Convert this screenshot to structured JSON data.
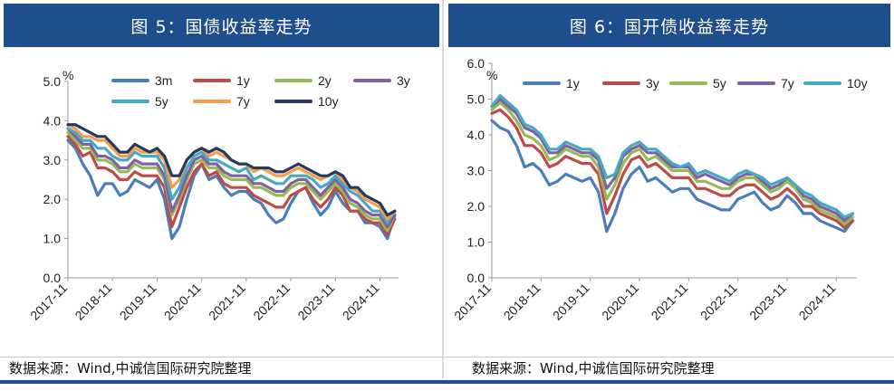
{
  "charts": [
    {
      "title": "图 5：国债收益率走势",
      "source": "数据来源：Wind,中诚信国际研究院整理",
      "unit": "%",
      "chart_data": {
        "type": "line",
        "xlabel": "",
        "ylabel": "%",
        "ylim": [
          0,
          5
        ],
        "yticks": [
          "0.0",
          "1.0",
          "2.0",
          "3.0",
          "4.0",
          "5.0"
        ],
        "x_ticks": [
          "2017-11",
          "2018-11",
          "2019-11",
          "2020-11",
          "2021-11",
          "2022-11",
          "2023-11",
          "2024-11"
        ],
        "x_range": [
          "2017-11",
          "2025-04"
        ],
        "legend": "top",
        "x": [
          "2017-11",
          "2018-01",
          "2018-03",
          "2018-05",
          "2018-07",
          "2018-09",
          "2018-11",
          "2019-01",
          "2019-03",
          "2019-05",
          "2019-07",
          "2019-09",
          "2019-11",
          "2020-01",
          "2020-03",
          "2020-05",
          "2020-07",
          "2020-09",
          "2020-11",
          "2021-01",
          "2021-03",
          "2021-05",
          "2021-07",
          "2021-09",
          "2021-11",
          "2022-01",
          "2022-03",
          "2022-05",
          "2022-07",
          "2022-09",
          "2022-11",
          "2023-01",
          "2023-03",
          "2023-05",
          "2023-07",
          "2023-09",
          "2023-11",
          "2024-01",
          "2024-03",
          "2024-05",
          "2024-07",
          "2024-09",
          "2024-11",
          "2025-01",
          "2025-03"
        ],
        "series": [
          {
            "name": "3m",
            "color": "#4a7ebb",
            "values": [
              3.5,
              3.3,
              2.9,
              2.6,
              2.1,
              2.4,
              2.4,
              2.1,
              2.2,
              2.5,
              2.4,
              2.3,
              2.5,
              2.0,
              1.0,
              1.3,
              2.0,
              2.6,
              2.9,
              2.5,
              2.6,
              2.3,
              2.1,
              2.2,
              2.2,
              2.0,
              1.9,
              1.6,
              1.4,
              1.5,
              1.9,
              2.2,
              2.3,
              1.9,
              1.6,
              1.8,
              2.2,
              1.9,
              1.7,
              1.7,
              1.4,
              1.4,
              1.3,
              1.0,
              1.6
            ]
          },
          {
            "name": "1y",
            "color": "#be4b48",
            "values": [
              3.6,
              3.4,
              3.1,
              3.2,
              2.8,
              2.8,
              2.7,
              2.5,
              2.5,
              2.7,
              2.6,
              2.6,
              2.6,
              2.3,
              1.3,
              1.8,
              2.3,
              2.7,
              2.9,
              2.6,
              2.7,
              2.4,
              2.3,
              2.3,
              2.3,
              2.1,
              2.0,
              1.9,
              1.8,
              1.8,
              2.1,
              2.2,
              2.3,
              2.0,
              1.8,
              2.0,
              2.3,
              2.1,
              1.7,
              1.7,
              1.5,
              1.4,
              1.4,
              1.1,
              1.5
            ]
          },
          {
            "name": "2y",
            "color": "#98b954",
            "values": [
              3.7,
              3.5,
              3.3,
              3.3,
              3.0,
              3.0,
              2.9,
              2.7,
              2.7,
              2.9,
              2.8,
              2.8,
              2.8,
              2.5,
              1.6,
              2.0,
              2.5,
              2.9,
              3.0,
              2.8,
              2.8,
              2.6,
              2.5,
              2.5,
              2.5,
              2.3,
              2.3,
              2.2,
              2.1,
              2.1,
              2.3,
              2.4,
              2.4,
              2.2,
              2.0,
              2.2,
              2.4,
              2.2,
              1.9,
              1.8,
              1.6,
              1.5,
              1.5,
              1.2,
              1.6
            ]
          },
          {
            "name": "3y",
            "color": "#7e62a1",
            "values": [
              3.8,
              3.6,
              3.4,
              3.4,
              3.1,
              3.1,
              3.0,
              2.8,
              2.8,
              3.0,
              2.9,
              2.9,
              2.9,
              2.6,
              1.7,
              2.1,
              2.6,
              3.0,
              3.1,
              2.9,
              2.9,
              2.7,
              2.6,
              2.6,
              2.6,
              2.4,
              2.4,
              2.3,
              2.2,
              2.2,
              2.4,
              2.5,
              2.5,
              2.3,
              2.1,
              2.3,
              2.5,
              2.3,
              2.0,
              1.9,
              1.7,
              1.6,
              1.6,
              1.3,
              1.6
            ]
          },
          {
            "name": "5y",
            "color": "#46aac5",
            "values": [
              3.8,
              3.7,
              3.5,
              3.5,
              3.3,
              3.3,
              3.1,
              3.0,
              3.0,
              3.2,
              3.1,
              3.1,
              3.1,
              2.8,
              2.0,
              2.3,
              2.8,
              3.1,
              3.2,
              3.0,
              3.0,
              2.9,
              2.8,
              2.7,
              2.8,
              2.5,
              2.6,
              2.5,
              2.4,
              2.4,
              2.6,
              2.6,
              2.6,
              2.5,
              2.3,
              2.4,
              2.6,
              2.4,
              2.2,
              2.1,
              1.9,
              1.7,
              1.7,
              1.4,
              1.7
            ]
          },
          {
            "name": "7y",
            "color": "#f59d4b",
            "values": [
              3.9,
              3.8,
              3.6,
              3.6,
              3.5,
              3.5,
              3.3,
              3.1,
              3.1,
              3.3,
              3.2,
              3.2,
              3.2,
              3.0,
              2.3,
              2.5,
              3.0,
              3.2,
              3.3,
              3.1,
              3.2,
              3.1,
              3.0,
              2.9,
              2.9,
              2.7,
              2.8,
              2.7,
              2.6,
              2.6,
              2.7,
              2.8,
              2.7,
              2.6,
              2.5,
              2.6,
              2.7,
              2.5,
              2.3,
              2.2,
              2.0,
              1.9,
              1.8,
              1.5,
              1.7
            ]
          },
          {
            "name": "10y",
            "color": "#253a5e",
            "values": [
              3.9,
              3.9,
              3.8,
              3.7,
              3.6,
              3.6,
              3.4,
              3.2,
              3.2,
              3.4,
              3.3,
              3.2,
              3.3,
              3.1,
              2.6,
              2.6,
              3.0,
              3.2,
              3.3,
              3.2,
              3.3,
              3.2,
              3.0,
              2.9,
              2.9,
              2.8,
              2.8,
              2.8,
              2.7,
              2.7,
              2.8,
              2.9,
              2.8,
              2.7,
              2.6,
              2.6,
              2.7,
              2.6,
              2.3,
              2.3,
              2.1,
              2.0,
              1.9,
              1.6,
              1.7
            ]
          }
        ]
      }
    },
    {
      "title": "图 6：国开债收益率走势",
      "source": "数据来源：Wind,中诚信国际研究院整理",
      "unit": "%",
      "chart_data": {
        "type": "line",
        "xlabel": "",
        "ylabel": "%",
        "ylim": [
          0,
          6
        ],
        "yticks": [
          "0.0",
          "1.0",
          "2.0",
          "3.0",
          "4.0",
          "5.0",
          "6.0"
        ],
        "x_ticks": [
          "2017-11",
          "2018-11",
          "2019-11",
          "2020-11",
          "2021-11",
          "2022-11",
          "2023-11",
          "2024-11"
        ],
        "x_range": [
          "2017-11",
          "2025-04"
        ],
        "legend": "top",
        "x": [
          "2017-11",
          "2018-01",
          "2018-03",
          "2018-05",
          "2018-07",
          "2018-09",
          "2018-11",
          "2019-01",
          "2019-03",
          "2019-05",
          "2019-07",
          "2019-09",
          "2019-11",
          "2020-01",
          "2020-03",
          "2020-05",
          "2020-07",
          "2020-09",
          "2020-11",
          "2021-01",
          "2021-03",
          "2021-05",
          "2021-07",
          "2021-09",
          "2021-11",
          "2022-01",
          "2022-03",
          "2022-05",
          "2022-07",
          "2022-09",
          "2022-11",
          "2023-01",
          "2023-03",
          "2023-05",
          "2023-07",
          "2023-09",
          "2023-11",
          "2024-01",
          "2024-03",
          "2024-05",
          "2024-07",
          "2024-09",
          "2024-11",
          "2025-01",
          "2025-03"
        ],
        "series": [
          {
            "name": "1y",
            "color": "#4a7ebb",
            "values": [
              4.4,
              4.2,
              4.1,
              3.7,
              3.1,
              3.2,
              3.0,
              2.6,
              2.7,
              2.9,
              2.8,
              2.7,
              2.8,
              2.4,
              1.3,
              1.8,
              2.5,
              2.9,
              3.1,
              2.7,
              2.8,
              2.6,
              2.4,
              2.5,
              2.5,
              2.2,
              2.1,
              2.0,
              1.9,
              1.9,
              2.2,
              2.3,
              2.4,
              2.1,
              1.9,
              2.0,
              2.3,
              2.1,
              1.8,
              1.8,
              1.6,
              1.5,
              1.4,
              1.3,
              1.6
            ]
          },
          {
            "name": "3y",
            "color": "#be4b48",
            "values": [
              4.6,
              4.7,
              4.5,
              4.2,
              3.7,
              3.7,
              3.5,
              3.1,
              3.2,
              3.4,
              3.3,
              3.2,
              3.2,
              2.9,
              1.8,
              2.3,
              2.9,
              3.3,
              3.4,
              3.1,
              3.2,
              3.0,
              2.8,
              2.8,
              2.8,
              2.5,
              2.5,
              2.4,
              2.3,
              2.3,
              2.5,
              2.6,
              2.6,
              2.4,
              2.2,
              2.3,
              2.5,
              2.3,
              2.0,
              2.0,
              1.8,
              1.7,
              1.6,
              1.4,
              1.6
            ]
          },
          {
            "name": "5y",
            "color": "#98b954",
            "values": [
              4.7,
              4.9,
              4.7,
              4.4,
              4.0,
              3.9,
              3.7,
              3.3,
              3.4,
              3.6,
              3.5,
              3.4,
              3.4,
              3.1,
              2.2,
              2.6,
              3.2,
              3.5,
              3.6,
              3.3,
              3.4,
              3.2,
              3.0,
              3.0,
              3.0,
              2.7,
              2.7,
              2.6,
              2.5,
              2.5,
              2.7,
              2.8,
              2.8,
              2.6,
              2.4,
              2.5,
              2.7,
              2.5,
              2.2,
              2.1,
              1.9,
              1.8,
              1.7,
              1.5,
              1.7
            ]
          },
          {
            "name": "7y",
            "color": "#7e62a1",
            "values": [
              4.8,
              5.0,
              4.8,
              4.6,
              4.2,
              4.1,
              3.9,
              3.5,
              3.5,
              3.7,
              3.6,
              3.5,
              3.5,
              3.3,
              2.5,
              2.8,
              3.4,
              3.6,
              3.7,
              3.5,
              3.5,
              3.3,
              3.1,
              3.1,
              3.1,
              2.8,
              2.9,
              2.8,
              2.7,
              2.6,
              2.8,
              2.9,
              2.9,
              2.7,
              2.5,
              2.6,
              2.8,
              2.6,
              2.3,
              2.2,
              2.0,
              1.9,
              1.8,
              1.6,
              1.8
            ]
          },
          {
            "name": "10y",
            "color": "#46aac5",
            "values": [
              4.8,
              5.1,
              4.9,
              4.7,
              4.3,
              4.2,
              4.0,
              3.6,
              3.6,
              3.8,
              3.7,
              3.6,
              3.6,
              3.4,
              2.8,
              2.9,
              3.5,
              3.7,
              3.8,
              3.6,
              3.6,
              3.4,
              3.2,
              3.1,
              3.2,
              2.9,
              3.0,
              2.9,
              2.8,
              2.7,
              2.9,
              3.0,
              2.9,
              2.8,
              2.6,
              2.7,
              2.8,
              2.6,
              2.4,
              2.3,
              2.1,
              2.0,
              1.9,
              1.7,
              1.8
            ]
          }
        ]
      }
    }
  ]
}
